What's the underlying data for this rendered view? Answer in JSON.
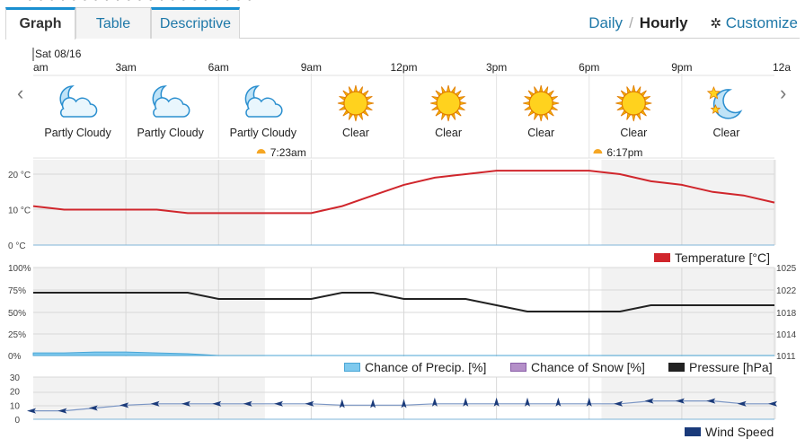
{
  "tabs": [
    {
      "label": "Graph",
      "active": true
    },
    {
      "label": "Table",
      "active": false
    },
    {
      "label": "Descriptive",
      "active": false
    }
  ],
  "view": {
    "daily": "Daily",
    "separator": "/",
    "hourly": "Hourly",
    "customize": "Customize"
  },
  "timeline": {
    "date_label": "Sat 08/16",
    "ticks": [
      "am",
      "3am",
      "6am",
      "9am",
      "12pm",
      "3pm",
      "6pm",
      "9pm",
      "12a"
    ]
  },
  "forecast": [
    {
      "label": "Partly Cloudy",
      "icon": "partly-cloudy-night-icon"
    },
    {
      "label": "Partly Cloudy",
      "icon": "partly-cloudy-night-icon"
    },
    {
      "label": "Partly Cloudy",
      "icon": "partly-cloudy-night-icon"
    },
    {
      "label": "Clear",
      "icon": "sun-icon"
    },
    {
      "label": "Clear",
      "icon": "sun-icon"
    },
    {
      "label": "Clear",
      "icon": "sun-icon"
    },
    {
      "label": "Clear",
      "icon": "sun-icon"
    },
    {
      "label": "Clear",
      "icon": "moon-stars-icon"
    }
  ],
  "sun": {
    "sunrise": "7:23am",
    "sunset": "6:17pm"
  },
  "colors": {
    "temperature": "#d0262c",
    "precip": "#7ec9ee",
    "snow": "#b48fc8",
    "pressure": "#222222",
    "wind": "#1a3a7a",
    "night": "#f2f2f2",
    "accent": "#1e78a8"
  },
  "chart_data": [
    {
      "type": "line",
      "x": [
        0,
        1,
        2,
        3,
        4,
        5,
        6,
        7,
        8,
        9,
        10,
        11,
        12,
        13,
        14,
        15,
        16,
        17,
        18,
        19,
        20,
        21,
        22,
        23,
        24
      ],
      "series": [
        {
          "name": "Temperature [°C]",
          "values": [
            11,
            10,
            10,
            10,
            10,
            9,
            9,
            9,
            9,
            9,
            11,
            14,
            17,
            19,
            20,
            21,
            21,
            21,
            21,
            20,
            18,
            17,
            15,
            14,
            12
          ]
        }
      ],
      "ylim": [
        0,
        25
      ],
      "ytick_labels": [
        "20 °C",
        "10 °C",
        "0 °C"
      ]
    },
    {
      "type": "line",
      "x": [
        0,
        1,
        2,
        3,
        4,
        5,
        6,
        7,
        8,
        9,
        10,
        11,
        12,
        13,
        14,
        15,
        16,
        17,
        18,
        19,
        20,
        21,
        22,
        23,
        24
      ],
      "series": [
        {
          "name": "Chance of Precip. [%]",
          "values": [
            3,
            3,
            4,
            4,
            3,
            2,
            0,
            0,
            0,
            0,
            0,
            0,
            0,
            0,
            0,
            0,
            0,
            0,
            0,
            0,
            0,
            0,
            0,
            0,
            0
          ]
        },
        {
          "name": "Chance of Snow [%]",
          "values": [
            0,
            0,
            0,
            0,
            0,
            0,
            0,
            0,
            0,
            0,
            0,
            0,
            0,
            0,
            0,
            0,
            0,
            0,
            0,
            0,
            0,
            0,
            0,
            0,
            0
          ]
        },
        {
          "name": "Pressure [hPa]",
          "values": [
            1021,
            1021,
            1021,
            1021,
            1021,
            1021,
            1020,
            1020,
            1020,
            1020,
            1021,
            1021,
            1020,
            1020,
            1020,
            1019,
            1018,
            1018,
            1018,
            1018,
            1019,
            1019,
            1019,
            1019,
            1019
          ]
        }
      ],
      "ylim_left": [
        0,
        100
      ],
      "ylim_right": [
        1011,
        1025
      ],
      "ytick_labels_left": [
        "100%",
        "75%",
        "50%",
        "25%",
        "0%"
      ],
      "ytick_labels_right": [
        "1025",
        "1022",
        "1018",
        "1014",
        "1011"
      ]
    },
    {
      "type": "line",
      "x": [
        0,
        1,
        2,
        3,
        4,
        5,
        6,
        7,
        8,
        9,
        10,
        11,
        12,
        13,
        14,
        15,
        16,
        17,
        18,
        19,
        20,
        21,
        22,
        23,
        24
      ],
      "series": [
        {
          "name": "Wind Speed",
          "values": [
            6,
            6,
            8,
            10,
            11,
            11,
            11,
            11,
            11,
            11,
            10,
            10,
            10,
            11,
            11,
            11,
            11,
            11,
            11,
            11,
            13,
            13,
            13,
            11,
            11
          ]
        }
      ],
      "ylim": [
        0,
        30
      ],
      "ytick_labels": [
        "30",
        "20",
        "10",
        "0"
      ]
    }
  ]
}
